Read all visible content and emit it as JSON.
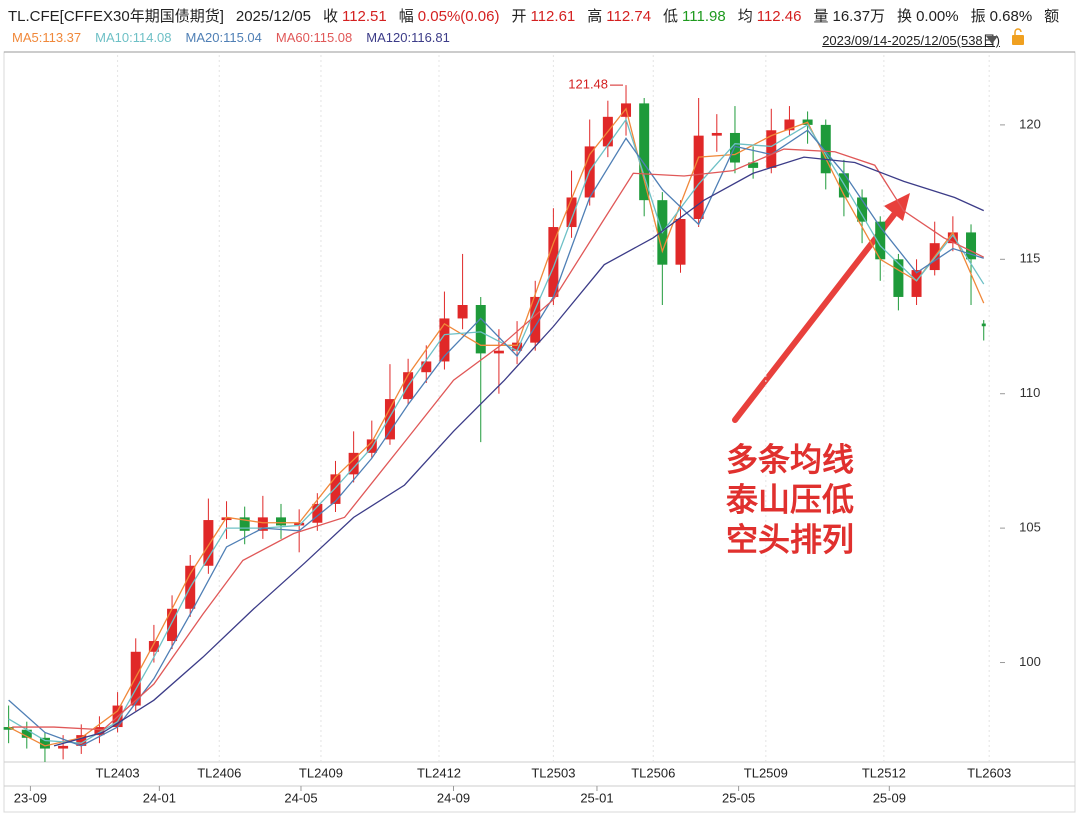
{
  "header": {
    "symbol": "TL.CFE[CFFEX30年期国债期货]",
    "date": "2025/12/05",
    "items": [
      {
        "label": "收",
        "value": "112.51",
        "color": "#d42020"
      },
      {
        "label": "幅",
        "value": "0.05%(0.06)",
        "color": "#d42020"
      },
      {
        "label": "开",
        "value": "112.61",
        "color": "#d42020"
      },
      {
        "label": "高",
        "value": "112.74",
        "color": "#d42020"
      },
      {
        "label": "低",
        "value": "111.98",
        "color": "#1e9a1e"
      },
      {
        "label": "均",
        "value": "112.46",
        "color": "#d42020"
      },
      {
        "label": "量",
        "value": "16.37万",
        "color": "#222222"
      },
      {
        "label": "换",
        "value": "0.00%",
        "color": "#222222"
      },
      {
        "label": "振",
        "value": "0.68%",
        "color": "#222222"
      },
      {
        "label": "额"
      }
    ],
    "range": "2023/09/14-2025/12/05(538日)"
  },
  "chart_data": {
    "type": "candlestick",
    "xlim": [
      -2,
      541
    ],
    "ylim": [
      96.3,
      122.6
    ],
    "yticks": [
      100,
      105,
      110,
      115,
      120
    ],
    "xticks": [
      {
        "value": 12,
        "label": "23-09"
      },
      {
        "value": 83,
        "label": "24-01"
      },
      {
        "value": 161,
        "label": "24-05"
      },
      {
        "value": 245,
        "label": "24-09"
      },
      {
        "value": 324,
        "label": "25-01"
      },
      {
        "value": 402,
        "label": "25-05"
      },
      {
        "value": 485,
        "label": "25-09"
      }
    ],
    "contract_ticks": [
      {
        "value": 60,
        "label": "TL2403"
      },
      {
        "value": 116,
        "label": "TL2406"
      },
      {
        "value": 172,
        "label": "TL2409"
      },
      {
        "value": 237,
        "label": "TL2412"
      },
      {
        "value": 300,
        "label": "TL2503"
      },
      {
        "value": 355,
        "label": "TL2506"
      },
      {
        "value": 417,
        "label": "TL2509"
      },
      {
        "value": 482,
        "label": "TL2512"
      },
      {
        "value": 540,
        "label": "TL2603"
      }
    ],
    "up_color": "#e02828",
    "down_color": "#1e9a3a",
    "candles": {
      "x": [
        0,
        10,
        20,
        30,
        40,
        50,
        60,
        70,
        80,
        90,
        100,
        110,
        120,
        130,
        140,
        150,
        160,
        170,
        180,
        190,
        200,
        210,
        220,
        230,
        240,
        250,
        260,
        270,
        280,
        290,
        300,
        310,
        320,
        330,
        340,
        350,
        360,
        370,
        380,
        390,
        400,
        410,
        420,
        430,
        440,
        450,
        460,
        470,
        480,
        490,
        500,
        510,
        520,
        530,
        537
      ],
      "open": [
        97.6,
        97.5,
        97.2,
        96.8,
        96.9,
        97.3,
        97.6,
        98.4,
        100.4,
        100.8,
        102.0,
        103.6,
        105.3,
        105.4,
        104.9,
        105.4,
        105.1,
        105.2,
        105.9,
        107.0,
        107.8,
        108.3,
        109.8,
        110.8,
        111.2,
        112.8,
        113.3,
        111.5,
        111.6,
        111.9,
        113.6,
        116.2,
        117.3,
        119.2,
        120.3,
        120.8,
        117.2,
        114.8,
        116.5,
        119.6,
        119.7,
        118.6,
        118.4,
        119.8,
        120.2,
        120.0,
        118.2,
        117.3,
        116.4,
        115.0,
        113.6,
        114.6,
        115.6,
        116.0,
        112.61
      ],
      "high": [
        98.4,
        97.8,
        97.4,
        97.3,
        97.7,
        98.0,
        98.9,
        100.9,
        101.4,
        102.5,
        104.0,
        106.1,
        106.0,
        105.8,
        106.2,
        105.9,
        105.7,
        106.3,
        107.5,
        108.6,
        109.0,
        111.1,
        111.3,
        111.8,
        113.8,
        115.2,
        113.6,
        112.4,
        112.7,
        114.2,
        116.9,
        118.3,
        120.2,
        120.9,
        121.48,
        121.0,
        117.5,
        117.2,
        121.0,
        120.4,
        120.7,
        119.2,
        120.6,
        120.7,
        120.5,
        120.2,
        118.7,
        117.6,
        116.6,
        115.2,
        115.0,
        116.4,
        116.6,
        116.3,
        112.74
      ],
      "low": [
        97.0,
        96.8,
        96.3,
        96.4,
        96.6,
        97.0,
        97.4,
        98.2,
        100.0,
        100.5,
        101.7,
        103.3,
        104.6,
        104.4,
        104.6,
        104.6,
        104.1,
        104.9,
        105.6,
        106.7,
        107.6,
        108.1,
        109.6,
        110.4,
        110.9,
        112.4,
        108.2,
        110.0,
        111.1,
        111.6,
        113.3,
        115.8,
        117.0,
        118.8,
        119.6,
        116.6,
        113.3,
        114.5,
        116.2,
        119.0,
        118.2,
        118.0,
        118.2,
        119.6,
        119.3,
        117.6,
        116.6,
        115.6,
        114.2,
        113.1,
        113.3,
        114.4,
        115.3,
        113.3,
        111.98
      ],
      "close": [
        97.5,
        97.2,
        96.8,
        96.9,
        97.3,
        97.6,
        98.4,
        100.4,
        100.8,
        102.0,
        103.6,
        105.3,
        105.4,
        104.9,
        105.4,
        105.1,
        105.2,
        105.9,
        107.0,
        107.8,
        108.3,
        109.8,
        110.8,
        111.2,
        112.8,
        113.3,
        111.5,
        111.6,
        111.9,
        113.6,
        116.2,
        117.3,
        119.2,
        120.3,
        120.8,
        117.2,
        114.8,
        116.5,
        119.6,
        119.7,
        118.6,
        118.4,
        119.8,
        120.2,
        120.0,
        118.2,
        117.3,
        116.4,
        115.0,
        113.6,
        114.6,
        115.6,
        116.0,
        115.0,
        112.51
      ]
    },
    "series": [
      {
        "name": "MA5:113.37",
        "color": "#f0883a",
        "x": [
          0,
          20,
          40,
          60,
          80,
          100,
          120,
          140,
          160,
          180,
          200,
          220,
          240,
          260,
          280,
          300,
          320,
          340,
          360,
          380,
          400,
          420,
          440,
          460,
          480,
          500,
          520,
          537
        ],
        "values": [
          97.6,
          96.9,
          97.2,
          98.2,
          100.7,
          103.3,
          105.4,
          105.2,
          105.2,
          106.9,
          108.2,
          110.7,
          112.6,
          111.8,
          111.8,
          115.6,
          118.9,
          120.6,
          115.3,
          118.8,
          118.9,
          119.6,
          120.1,
          117.4,
          115.0,
          114.2,
          116.0,
          113.37
        ]
      },
      {
        "name": "MA10:114.08",
        "color": "#6ec0c6",
        "x": [
          0,
          20,
          40,
          60,
          80,
          100,
          120,
          140,
          160,
          180,
          200,
          220,
          240,
          260,
          280,
          300,
          320,
          340,
          360,
          380,
          400,
          420,
          440,
          460,
          480,
          500,
          520,
          537
        ],
        "values": [
          97.9,
          97.1,
          97.0,
          97.8,
          100.2,
          102.8,
          105.0,
          105.0,
          105.1,
          106.5,
          108.0,
          110.3,
          112.2,
          112.3,
          111.6,
          114.7,
          118.3,
          120.2,
          116.0,
          117.8,
          119.3,
          119.2,
          120.0,
          117.8,
          115.5,
          114.2,
          115.9,
          114.08
        ]
      },
      {
        "name": "MA20:115.04",
        "color": "#4f7fb5",
        "x": [
          0,
          20,
          40,
          60,
          80,
          100,
          120,
          140,
          160,
          180,
          200,
          220,
          240,
          260,
          280,
          300,
          320,
          340,
          360,
          380,
          400,
          420,
          440,
          460,
          480,
          500,
          520,
          537
        ],
        "values": [
          98.6,
          97.4,
          96.9,
          97.6,
          99.4,
          101.8,
          104.3,
          105.0,
          104.9,
          106.0,
          107.6,
          109.6,
          111.4,
          112.8,
          111.4,
          113.6,
          117.3,
          119.5,
          117.6,
          116.3,
          119.2,
          118.9,
          119.8,
          118.2,
          116.2,
          114.5,
          115.4,
          115.04
        ]
      },
      {
        "name": "MA60:115.08",
        "color": "#e05858",
        "x": [
          2,
          25,
          52,
          80,
          107,
          129,
          157,
          185,
          218,
          245,
          273,
          300,
          328,
          344,
          372,
          399,
          427,
          455,
          477,
          493,
          515,
          537
        ],
        "values": [
          97.6,
          97.6,
          97.5,
          99.2,
          101.8,
          103.8,
          104.8,
          105.4,
          108.2,
          110.5,
          111.9,
          113.5,
          116.5,
          118.2,
          118.1,
          118.3,
          119.1,
          119.0,
          118.5,
          116.8,
          115.8,
          115.08
        ]
      },
      {
        "name": "MA120:116.81",
        "color": "#3c3c88",
        "x": [
          25,
          52,
          80,
          107,
          135,
          163,
          190,
          218,
          245,
          273,
          300,
          328,
          355,
          383,
          410,
          438,
          466,
          493,
          521,
          537
        ],
        "values": [
          96.9,
          97.4,
          98.6,
          100.2,
          102.0,
          103.7,
          105.4,
          106.6,
          108.6,
          110.5,
          112.5,
          114.8,
          115.8,
          117.2,
          118.2,
          118.8,
          118.6,
          117.9,
          117.3,
          116.81
        ]
      }
    ],
    "annotation": [
      "多条均线",
      "泰山压低",
      "空头排列"
    ],
    "annotation_color": "#e0302e"
  }
}
